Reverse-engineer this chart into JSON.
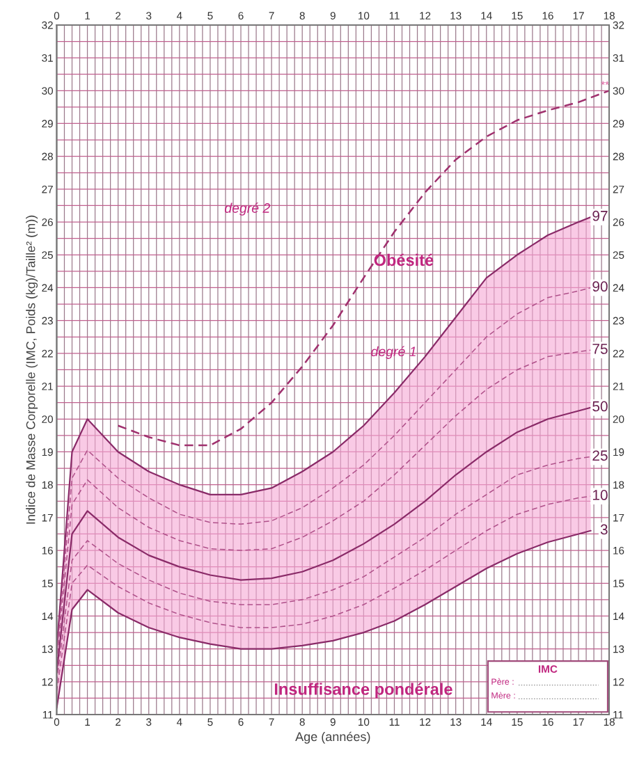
{
  "chart_data": {
    "type": "line",
    "xlabel": "Age (années)",
    "ylabel": "Indice de Masse Corporelle (IMC, Poids (kg)/Taille² (m))",
    "x": [
      0,
      0.5,
      1,
      2,
      3,
      4,
      5,
      6,
      7,
      8,
      9,
      10,
      11,
      12,
      13,
      14,
      15,
      16,
      17,
      17.4
    ],
    "series": [
      {
        "name": "97",
        "color": "#8a2a68",
        "line_style": "solid",
        "values": [
          13.0,
          19.0,
          20.0,
          19.0,
          18.4,
          18.0,
          17.7,
          17.7,
          17.9,
          18.4,
          19.0,
          19.8,
          20.8,
          21.9,
          23.1,
          24.3,
          25.0,
          25.6,
          26.0,
          26.15
        ]
      },
      {
        "name": "90",
        "color": "#b0508a",
        "line_style": "dashed",
        "values": [
          12.8,
          18.2,
          19.05,
          18.2,
          17.6,
          17.1,
          16.85,
          16.8,
          16.9,
          17.3,
          17.9,
          18.6,
          19.5,
          20.5,
          21.5,
          22.5,
          23.2,
          23.7,
          23.9,
          24.0
        ]
      },
      {
        "name": "75",
        "color": "#b0508a",
        "line_style": "dashed",
        "values": [
          12.6,
          17.4,
          18.15,
          17.3,
          16.7,
          16.3,
          16.05,
          16.0,
          16.05,
          16.4,
          16.9,
          17.5,
          18.3,
          19.2,
          20.1,
          20.9,
          21.5,
          21.9,
          22.05,
          22.1
        ]
      },
      {
        "name": "50",
        "color": "#8a2a68",
        "line_style": "solid",
        "values": [
          12.3,
          16.5,
          17.2,
          16.4,
          15.85,
          15.5,
          15.25,
          15.1,
          15.15,
          15.35,
          15.7,
          16.2,
          16.8,
          17.5,
          18.3,
          19.0,
          19.6,
          20.0,
          20.25,
          20.35
        ],
        "lower": [
          11.2,
          14.2,
          14.8,
          14.1,
          13.65,
          13.35,
          13.15,
          13.0,
          13.0,
          13.1,
          13.25,
          13.5,
          13.85,
          14.35,
          14.9,
          15.45,
          15.9,
          16.25,
          16.5,
          16.6
        ],
        "upper": [
          13.0,
          19.0,
          20.0,
          19.0,
          18.4,
          18.0,
          17.7,
          17.7,
          17.9,
          18.4,
          19.0,
          19.8,
          20.8,
          21.9,
          23.1,
          24.3,
          25.0,
          25.6,
          26.0,
          26.15
        ]
      },
      {
        "name": "25",
        "color": "#b0508a",
        "line_style": "dashed",
        "values": [
          12.0,
          15.7,
          16.3,
          15.6,
          15.1,
          14.7,
          14.45,
          14.35,
          14.35,
          14.5,
          14.8,
          15.2,
          15.8,
          16.4,
          17.1,
          17.7,
          18.3,
          18.6,
          18.8,
          18.85
        ]
      },
      {
        "name": "10",
        "color": "#b0508a",
        "line_style": "dashed",
        "values": [
          11.7,
          15.0,
          15.55,
          14.9,
          14.4,
          14.05,
          13.8,
          13.65,
          13.65,
          13.75,
          14.0,
          14.35,
          14.85,
          15.4,
          16.0,
          16.6,
          17.1,
          17.4,
          17.6,
          17.65
        ]
      },
      {
        "name": "3",
        "color": "#8a2a68",
        "line_style": "solid",
        "values": [
          11.2,
          14.2,
          14.8,
          14.1,
          13.65,
          13.35,
          13.15,
          13.0,
          13.0,
          13.1,
          13.25,
          13.5,
          13.85,
          14.35,
          14.9,
          15.45,
          15.9,
          16.25,
          16.5,
          16.6
        ]
      },
      {
        "color": "#a0306e",
        "line_style": "dashed",
        "x": [
          2,
          3,
          4,
          5,
          6,
          7,
          8,
          9,
          10,
          11,
          12,
          13,
          14,
          15,
          16,
          17,
          18
        ],
        "values": [
          19.8,
          19.45,
          19.2,
          19.2,
          19.7,
          20.5,
          21.6,
          22.85,
          24.3,
          25.7,
          26.9,
          27.9,
          28.6,
          29.1,
          29.4,
          29.65,
          30.0
        ]
      }
    ],
    "xlim": [
      0,
      18
    ],
    "xticks": [
      0,
      1,
      2,
      3,
      4,
      5,
      6,
      7,
      8,
      9,
      10,
      11,
      12,
      13,
      14,
      15,
      16,
      17,
      18
    ],
    "x2lim": [
      0,
      18
    ],
    "x2ticks": [
      0,
      1,
      2,
      3,
      4,
      5,
      6,
      7,
      8,
      9,
      10,
      11,
      12,
      13,
      14,
      15,
      16,
      17,
      18
    ],
    "ylim": [
      11,
      32
    ],
    "yticks": [
      11,
      12,
      13,
      14,
      15,
      16,
      17,
      18,
      19,
      20,
      21,
      22,
      23,
      24,
      25,
      26,
      27,
      28,
      29,
      30,
      31,
      32
    ],
    "y2lim": [
      11,
      32
    ],
    "y2ticks": [
      11,
      12,
      13,
      14,
      15,
      16,
      17,
      18,
      19,
      20,
      21,
      22,
      23,
      24,
      25,
      26,
      27,
      28,
      29,
      30,
      31,
      32
    ],
    "grid": true,
    "legend": false,
    "marker": "none",
    "annotations": [
      "degré 2",
      "Obésité",
      "degré 1",
      "Insuffisance pondérale",
      {
        "text": "**",
        "x": 18,
        "y": 30
      },
      "IMC",
      "Père :",
      "Mère :"
    ]
  }
}
